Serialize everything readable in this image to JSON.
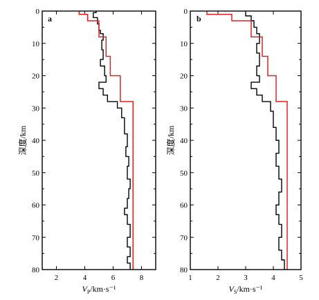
{
  "chart_data": [
    {
      "type": "line",
      "panel_label": "a",
      "ylabel": "深度/km",
      "xlabel_main": "V",
      "xlabel_sub": "P",
      "xlabel_unit": "/km·s⁻¹",
      "xlim": [
        1,
        9
      ],
      "ylim": [
        80,
        0
      ],
      "xticks": [
        2,
        4,
        6,
        8
      ],
      "yticks": [
        0,
        10,
        20,
        30,
        40,
        50,
        60,
        70,
        80
      ],
      "series": [
        {
          "color": "#000000",
          "style": "step-profile",
          "points": [
            [
              4.8,
              0
            ],
            [
              4.8,
              0.5
            ],
            [
              4.6,
              0.5
            ],
            [
              4.6,
              2
            ],
            [
              4.9,
              2
            ],
            [
              4.9,
              4
            ],
            [
              5.0,
              4
            ],
            [
              5.0,
              6
            ],
            [
              5.1,
              6
            ],
            [
              5.1,
              7
            ],
            [
              5.3,
              7
            ],
            [
              5.3,
              9
            ],
            [
              5.2,
              9
            ],
            [
              5.2,
              12
            ],
            [
              5.3,
              12
            ],
            [
              5.3,
              15
            ],
            [
              5.1,
              15
            ],
            [
              5.1,
              17
            ],
            [
              5.4,
              17
            ],
            [
              5.4,
              20
            ],
            [
              5.5,
              20
            ],
            [
              5.5,
              22
            ],
            [
              5.0,
              22
            ],
            [
              5.0,
              24
            ],
            [
              5.3,
              24
            ],
            [
              5.3,
              26
            ],
            [
              5.6,
              26
            ],
            [
              5.6,
              28
            ],
            [
              6.3,
              28
            ],
            [
              6.3,
              30
            ],
            [
              6.6,
              30
            ],
            [
              6.6,
              33
            ],
            [
              6.8,
              33
            ],
            [
              6.8,
              38
            ],
            [
              7.0,
              38
            ],
            [
              7.0,
              42
            ],
            [
              6.9,
              42
            ],
            [
              6.9,
              45
            ],
            [
              7.1,
              45
            ],
            [
              7.1,
              48
            ],
            [
              7.0,
              48
            ],
            [
              7.0,
              52
            ],
            [
              7.2,
              52
            ],
            [
              7.2,
              55
            ],
            [
              7.1,
              55
            ],
            [
              7.1,
              58
            ],
            [
              7.0,
              58
            ],
            [
              7.0,
              61
            ],
            [
              6.8,
              61
            ],
            [
              6.8,
              63
            ],
            [
              7.0,
              63
            ],
            [
              7.0,
              66
            ],
            [
              7.2,
              66
            ],
            [
              7.2,
              70
            ],
            [
              7.0,
              70
            ],
            [
              7.0,
              73
            ],
            [
              7.2,
              73
            ],
            [
              7.2,
              76
            ],
            [
              7.0,
              76
            ],
            [
              7.0,
              78
            ],
            [
              7.2,
              78
            ],
            [
              7.2,
              80
            ]
          ]
        },
        {
          "color": "#e02020",
          "style": "step-model",
          "points": [
            [
              3.6,
              0
            ],
            [
              3.6,
              1
            ],
            [
              4.2,
              1
            ],
            [
              4.2,
              3
            ],
            [
              5.0,
              3
            ],
            [
              5.0,
              8
            ],
            [
              5.5,
              8
            ],
            [
              5.5,
              14
            ],
            [
              5.8,
              14
            ],
            [
              5.8,
              20
            ],
            [
              6.5,
              20
            ],
            [
              6.5,
              28
            ],
            [
              7.4,
              28
            ],
            [
              7.4,
              80
            ]
          ]
        }
      ]
    },
    {
      "type": "line",
      "panel_label": "b",
      "ylabel": "深度/km",
      "xlabel_main": "V",
      "xlabel_sub": "S",
      "xlabel_unit": "/km·s⁻¹",
      "xlim": [
        1,
        5
      ],
      "ylim": [
        80,
        0
      ],
      "xticks": [
        1,
        2,
        3,
        4,
        5
      ],
      "yticks": [
        0,
        10,
        20,
        30,
        40,
        50,
        60,
        70,
        80
      ],
      "series": [
        {
          "color": "#000000",
          "style": "step-profile",
          "points": [
            [
              3.0,
              0
            ],
            [
              3.0,
              1.5
            ],
            [
              3.2,
              1.5
            ],
            [
              3.2,
              3
            ],
            [
              3.3,
              3
            ],
            [
              3.3,
              5
            ],
            [
              3.4,
              5
            ],
            [
              3.4,
              7
            ],
            [
              3.5,
              7
            ],
            [
              3.5,
              10
            ],
            [
              3.4,
              10
            ],
            [
              3.4,
              13
            ],
            [
              3.5,
              13
            ],
            [
              3.5,
              17
            ],
            [
              3.4,
              17
            ],
            [
              3.4,
              20
            ],
            [
              3.5,
              20
            ],
            [
              3.5,
              22
            ],
            [
              3.2,
              22
            ],
            [
              3.2,
              24
            ],
            [
              3.4,
              24
            ],
            [
              3.4,
              26
            ],
            [
              3.6,
              26
            ],
            [
              3.6,
              28
            ],
            [
              3.9,
              28
            ],
            [
              3.9,
              31
            ],
            [
              4.0,
              31
            ],
            [
              4.0,
              36
            ],
            [
              4.1,
              36
            ],
            [
              4.1,
              40
            ],
            [
              4.2,
              40
            ],
            [
              4.2,
              44
            ],
            [
              4.1,
              44
            ],
            [
              4.1,
              48
            ],
            [
              4.2,
              48
            ],
            [
              4.2,
              52
            ],
            [
              4.3,
              52
            ],
            [
              4.3,
              56
            ],
            [
              4.2,
              56
            ],
            [
              4.2,
              60
            ],
            [
              4.1,
              60
            ],
            [
              4.1,
              63
            ],
            [
              4.2,
              63
            ],
            [
              4.2,
              66
            ],
            [
              4.3,
              66
            ],
            [
              4.3,
              70
            ],
            [
              4.2,
              70
            ],
            [
              4.2,
              74
            ],
            [
              4.3,
              74
            ],
            [
              4.3,
              77
            ],
            [
              4.4,
              77
            ],
            [
              4.4,
              80
            ]
          ]
        },
        {
          "color": "#e02020",
          "style": "step-model",
          "points": [
            [
              1.6,
              0
            ],
            [
              1.6,
              1
            ],
            [
              2.5,
              1
            ],
            [
              2.5,
              3
            ],
            [
              3.2,
              3
            ],
            [
              3.2,
              8
            ],
            [
              3.6,
              8
            ],
            [
              3.6,
              14
            ],
            [
              3.8,
              14
            ],
            [
              3.8,
              20
            ],
            [
              4.1,
              20
            ],
            [
              4.1,
              28
            ],
            [
              4.5,
              28
            ],
            [
              4.5,
              80
            ]
          ]
        }
      ]
    }
  ]
}
